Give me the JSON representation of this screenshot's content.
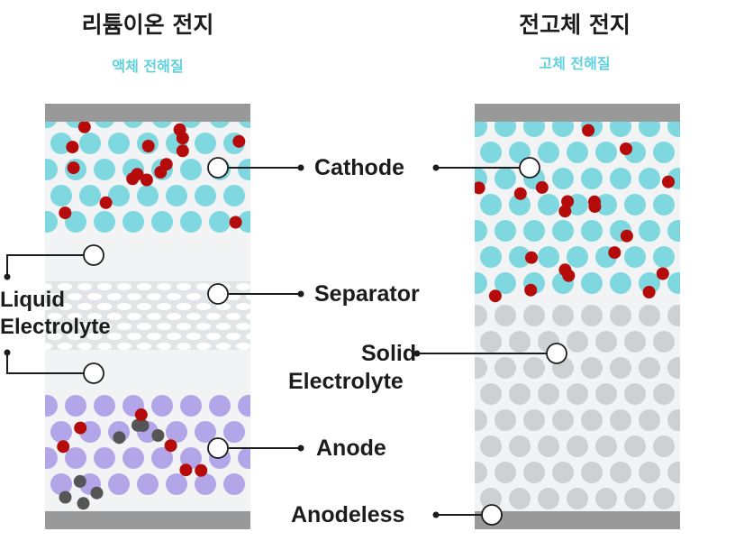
{
  "left_panel": {
    "title": "리튬이온 전지",
    "subtitle": "액체 전해질"
  },
  "right_panel": {
    "title": "전고체 전지",
    "subtitle": "고체 전해질"
  },
  "labels": {
    "cathode": "Cathode",
    "separator": "Separator",
    "anode": "Anode",
    "liquid_electrolyte_line1": "Liquid",
    "liquid_electrolyte_line2": "Electrolyte",
    "solid_electrolyte_line1": "Solid",
    "solid_electrolyte_line2": "Electrolyte",
    "anodeless": "Anodeless"
  },
  "colors": {
    "cathode_particle": "#7fd8e0",
    "lithium_ion": "#b50b0b",
    "anode_particle": "#b3a6e8",
    "anode_dark_particle": "#555555",
    "solid_electrolyte_particle": "#cdd1d3",
    "collector": "#999999",
    "panel_bg": "#f1f3f4",
    "subtitle": "#5fd0dc"
  }
}
